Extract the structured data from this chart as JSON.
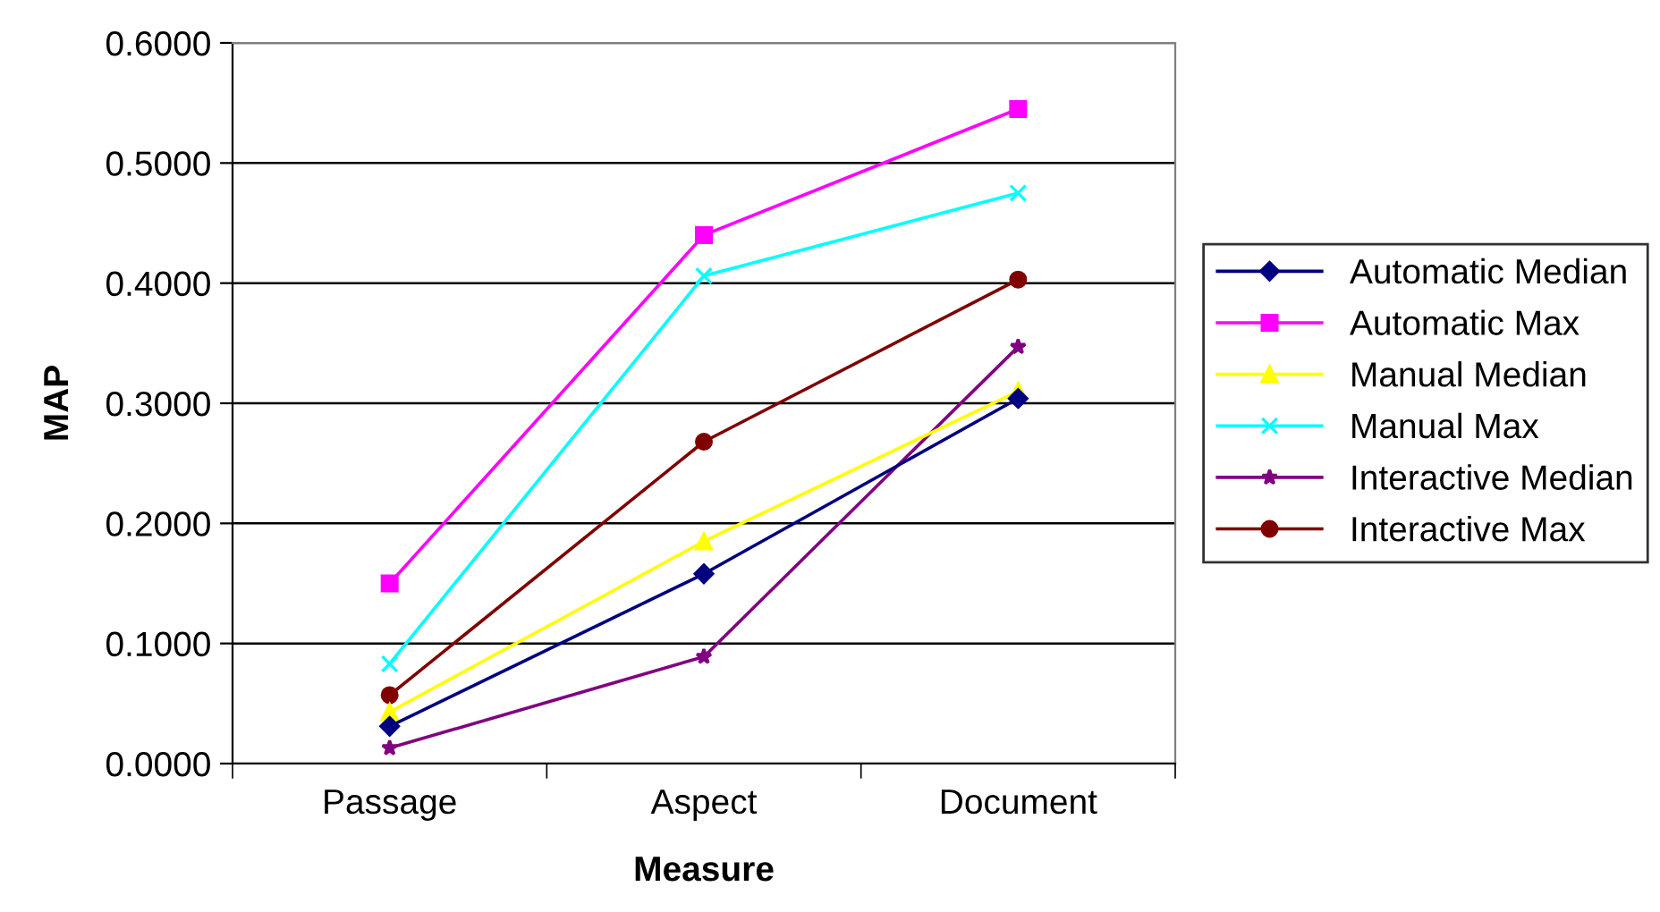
{
  "chart_data": {
    "type": "line",
    "xlabel": "Measure",
    "ylabel": "MAP",
    "categories": [
      "Passage",
      "Aspect",
      "Document"
    ],
    "series": [
      {
        "name": "Automatic Median",
        "color": "#000080",
        "marker": "diamond",
        "values": [
          0.031,
          0.158,
          0.304
        ]
      },
      {
        "name": "Automatic Max",
        "color": "#ff00ff",
        "marker": "square",
        "values": [
          0.15,
          0.44,
          0.545
        ]
      },
      {
        "name": "Manual Median",
        "color": "#ffff00",
        "marker": "triangle",
        "values": [
          0.043,
          0.185,
          0.31
        ]
      },
      {
        "name": "Manual Max",
        "color": "#00ffff",
        "marker": "cross",
        "values": [
          0.083,
          0.406,
          0.475
        ]
      },
      {
        "name": "Interactive Median",
        "color": "#800080",
        "marker": "star",
        "values": [
          0.013,
          0.089,
          0.347
        ]
      },
      {
        "name": "Interactive Max",
        "color": "#800000",
        "marker": "circle",
        "values": [
          0.057,
          0.268,
          0.403
        ]
      }
    ],
    "ylim": [
      0,
      0.6
    ],
    "yticks": [
      {
        "value": 0,
        "label": "0.0000"
      },
      {
        "value": 0.1,
        "label": "0.1000"
      },
      {
        "value": 0.2,
        "label": "0.2000"
      },
      {
        "value": 0.3,
        "label": "0.3000"
      },
      {
        "value": 0.4,
        "label": "0.4000"
      },
      {
        "value": 0.5,
        "label": "0.5000"
      },
      {
        "value": 0.6,
        "label": "0.6000"
      }
    ],
    "grid": "y",
    "legend": "right"
  }
}
